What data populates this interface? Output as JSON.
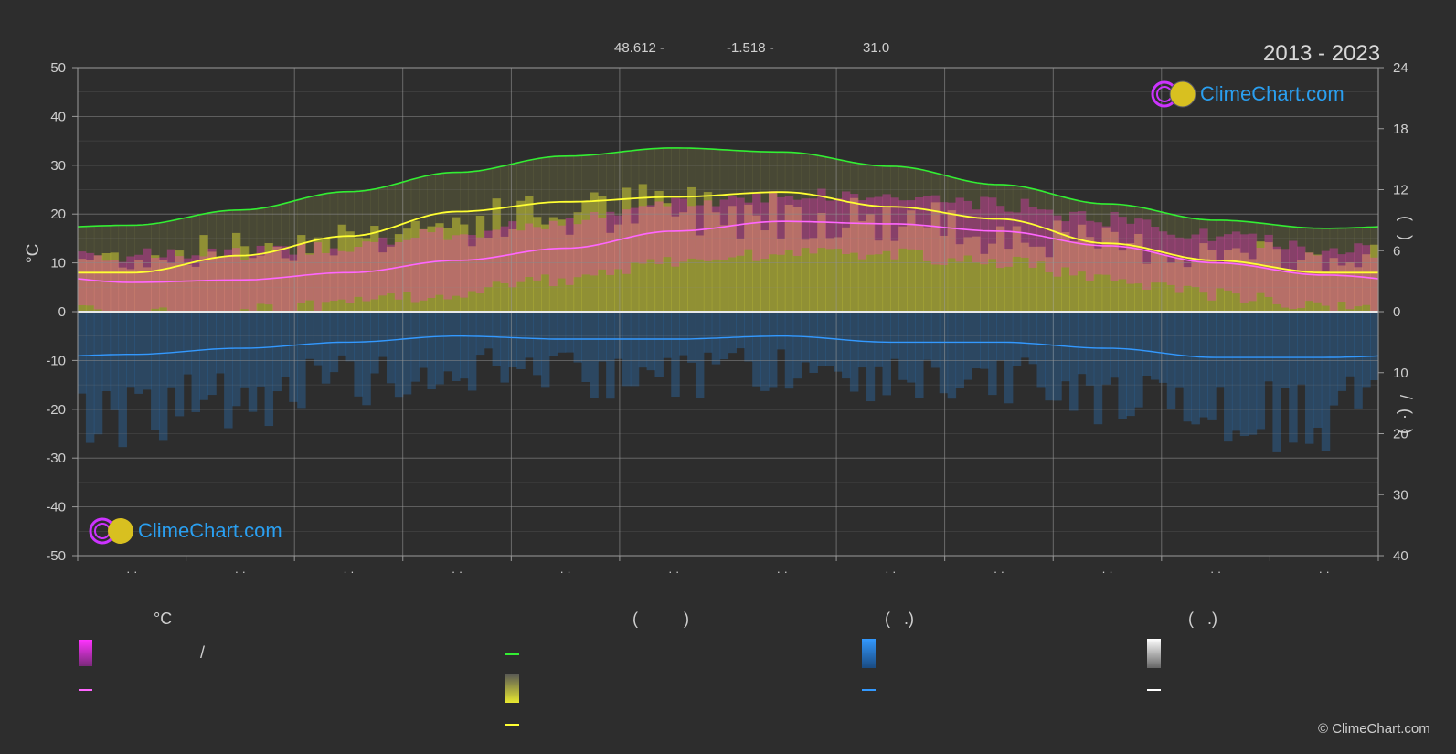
{
  "header": {
    "lat": "48.612 -",
    "lon": "-1.518 -",
    "elev": "31.0",
    "years": "2013 - 2023"
  },
  "brand": {
    "logo_text": "ClimeChart.com",
    "copyright": "© ClimeChart.com"
  },
  "axes": {
    "left_unit": "°C",
    "left_ticks": [
      "50",
      "40",
      "30",
      "20",
      "10",
      "0",
      "-10",
      "-20",
      "-30",
      "-40",
      "-50"
    ],
    "right_ticks_top": [
      "24",
      "18",
      "12",
      "6",
      "0"
    ],
    "right_ticks_bottom": [
      "10",
      "20",
      "30",
      "40"
    ],
    "right_top_label": "(   )",
    "right_bottom_label": "/  (·  )",
    "month_ticks": [
      "· ·",
      "· ·",
      "· ·",
      "· ·",
      "· ·",
      "· ·",
      "· ·",
      "· ·",
      "· ·",
      "· ·",
      "· ·",
      "· ·"
    ]
  },
  "legend": {
    "col1_title": "°C",
    "col1_item1_sep": "/",
    "col2_title": "(          )",
    "col3_title": "(   .)",
    "col4_title": "(   .)"
  },
  "colors": {
    "background": "#2d2d2d",
    "max_temp": "#ffff33",
    "mean_temp": "#ff66ff",
    "daylight": "#33ee33",
    "precip": "#3399ff",
    "snow": "#ffffff",
    "temp_band": "#ff33cc",
    "sun_band": "#cccc33"
  },
  "chart_data": {
    "type": "line",
    "title": "2013 - 2023",
    "x": [
      1,
      2,
      3,
      4,
      5,
      6,
      7,
      8,
      9,
      10,
      11,
      12
    ],
    "ylim_left": [
      -50,
      50
    ],
    "ylim_right_hours": [
      0,
      24
    ],
    "ylim_right_precip": [
      0,
      40
    ],
    "grid": true,
    "series": [
      {
        "key": "daylight",
        "axis": "hours",
        "values": [
          8.5,
          10.0,
          11.8,
          13.7,
          15.3,
          16.1,
          15.7,
          14.3,
          12.5,
          10.6,
          9.0,
          8.2
        ]
      },
      {
        "key": "max_temp",
        "axis": "temp",
        "values": [
          8.0,
          11.5,
          15.5,
          20.5,
          22.5,
          23.5,
          24.5,
          21.5,
          19.0,
          14.0,
          10.5,
          8.0
        ]
      },
      {
        "key": "mean_temp",
        "axis": "temp",
        "values": [
          6.0,
          6.5,
          8.0,
          10.5,
          13.0,
          16.5,
          18.5,
          18.0,
          16.5,
          13.5,
          10.0,
          7.5
        ]
      },
      {
        "key": "precip",
        "axis": "precip_mm",
        "values": [
          7.0,
          6.0,
          5.0,
          4.0,
          4.5,
          4.5,
          4.0,
          5.0,
          5.0,
          6.0,
          7.5,
          7.5
        ]
      }
    ]
  }
}
